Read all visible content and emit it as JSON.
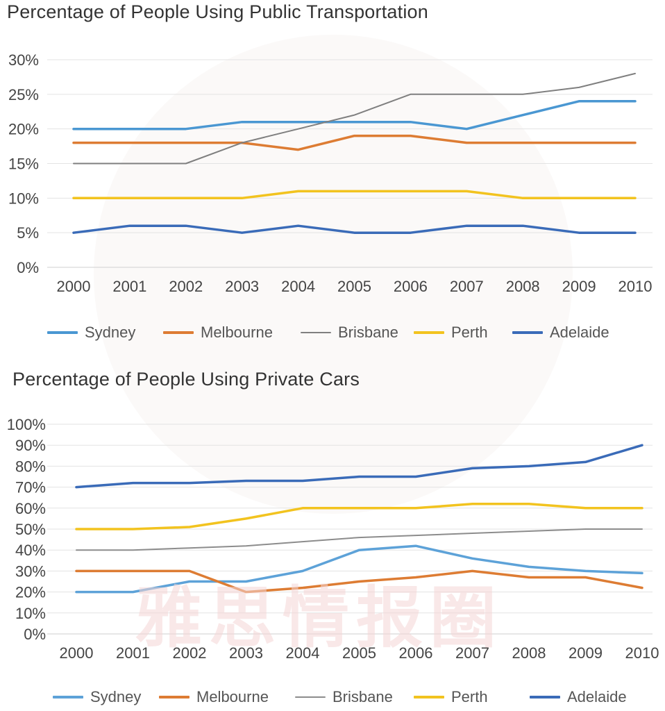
{
  "chart_data": [
    {
      "type": "line",
      "title": "Percentage of People Using Public Transportation",
      "xlabel": "",
      "ylabel": "",
      "x": [
        "2000",
        "2001",
        "2002",
        "2003",
        "2004",
        "2005",
        "2006",
        "2007",
        "2008",
        "2009",
        "2010"
      ],
      "yticks": [
        "0%",
        "5%",
        "10%",
        "15%",
        "20%",
        "25%",
        "30%"
      ],
      "ylim": [
        0,
        30
      ],
      "grid": true,
      "legend_position": "bottom",
      "series": [
        {
          "name": "Sydney",
          "color": "#4a97d2",
          "values": [
            20,
            20,
            20,
            21,
            21,
            21,
            21,
            20,
            22,
            24,
            24
          ]
        },
        {
          "name": "Melbourne",
          "color": "#dd7c33",
          "values": [
            18,
            18,
            18,
            18,
            17,
            19,
            19,
            18,
            18,
            18,
            18
          ]
        },
        {
          "name": "Brisbane",
          "color": "#7f7f7f",
          "values": [
            15,
            15,
            15,
            18,
            20,
            22,
            25,
            25,
            25,
            26,
            28
          ]
        },
        {
          "name": "Perth",
          "color": "#f2c31f",
          "values": [
            10,
            10,
            10,
            10,
            11,
            11,
            11,
            11,
            10,
            10,
            10
          ]
        },
        {
          "name": "Adelaide",
          "color": "#3a6bb8",
          "values": [
            5,
            6,
            6,
            5,
            6,
            5,
            5,
            6,
            6,
            5,
            5
          ]
        }
      ]
    },
    {
      "type": "line",
      "title": "Percentage of People Using Private Cars",
      "xlabel": "",
      "ylabel": "",
      "x": [
        "2000",
        "2001",
        "2002",
        "2003",
        "2004",
        "2005",
        "2006",
        "2007",
        "2008",
        "2009",
        "2010"
      ],
      "yticks": [
        "0%",
        "10%",
        "20%",
        "30%",
        "40%",
        "50%",
        "60%",
        "70%",
        "80%",
        "90%",
        "100%"
      ],
      "ylim": [
        0,
        100
      ],
      "grid": true,
      "legend_position": "bottom",
      "series": [
        {
          "name": "Sydney",
          "color": "#5da2d8",
          "values": [
            20,
            20,
            25,
            25,
            30,
            40,
            42,
            36,
            32,
            30,
            29
          ]
        },
        {
          "name": "Melbourne",
          "color": "#dd7c33",
          "values": [
            30,
            30,
            30,
            20,
            22,
            25,
            27,
            30,
            27,
            27,
            22
          ]
        },
        {
          "name": "Brisbane",
          "color": "#8c8c8c",
          "values": [
            40,
            40,
            41,
            42,
            44,
            46,
            47,
            48,
            49,
            50,
            50
          ]
        },
        {
          "name": "Perth",
          "color": "#f2c31f",
          "values": [
            50,
            50,
            51,
            55,
            60,
            60,
            60,
            62,
            62,
            60,
            60
          ]
        },
        {
          "name": "Adelaide",
          "color": "#3a6bb8",
          "values": [
            70,
            72,
            72,
            73,
            73,
            75,
            75,
            79,
            80,
            82,
            90
          ]
        }
      ]
    }
  ],
  "watermark": "雅思情报圈"
}
